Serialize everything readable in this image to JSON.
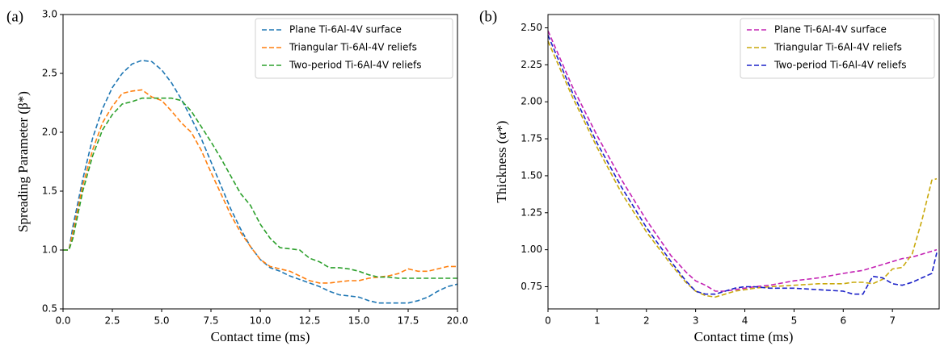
{
  "chart_data": [
    {
      "type": "line",
      "panel": "(a)",
      "x_label": "Contact time (ms)",
      "y_label": "Spreading Parameter (β*)",
      "xlim": [
        0,
        20
      ],
      "ylim": [
        0.5,
        3.0
      ],
      "xticks": [
        {
          "value": 0,
          "label": "0.0"
        },
        2.5,
        {
          "value": 5,
          "label": "5.0"
        },
        7.5,
        {
          "value": 10,
          "label": "10.0"
        },
        12.5,
        {
          "value": 15,
          "label": "15.0"
        },
        17.5,
        {
          "value": 20,
          "label": "20.0"
        }
      ],
      "yticks": [
        0.5,
        {
          "value": 1,
          "label": "1.0"
        },
        1.5,
        {
          "value": 2,
          "label": "2.0"
        },
        2.5,
        {
          "value": 3,
          "label": "3.0"
        }
      ],
      "legend": "upper right",
      "line_style": "dashed",
      "x": [
        0,
        0.3,
        0.5,
        1,
        1.5,
        2,
        2.5,
        3,
        3.5,
        4,
        4.5,
        5,
        5.5,
        6,
        6.5,
        7,
        7.5,
        8,
        8.5,
        9,
        9.5,
        10,
        10.5,
        11,
        11.5,
        12,
        12.5,
        13,
        13.5,
        14,
        14.5,
        15,
        15.5,
        16,
        16.5,
        17,
        17.5,
        18,
        18.5,
        19,
        19.5,
        20
      ],
      "series": [
        {
          "name": "Plane Ti-6Al-4V surface",
          "color": "#1f77b4",
          "values": [
            1.0,
            1.0,
            1.2,
            1.6,
            1.95,
            2.2,
            2.38,
            2.5,
            2.58,
            2.61,
            2.6,
            2.53,
            2.42,
            2.28,
            2.12,
            1.95,
            1.75,
            1.55,
            1.35,
            1.18,
            1.03,
            0.92,
            0.85,
            0.82,
            0.78,
            0.75,
            0.72,
            0.69,
            0.65,
            0.62,
            0.61,
            0.6,
            0.57,
            0.55,
            0.55,
            0.55,
            0.55,
            0.57,
            0.6,
            0.65,
            0.69,
            0.71
          ]
        },
        {
          "name": "Triangular Ti-6Al-4V reliefs",
          "color": "#ff7f0e",
          "values": [
            1.0,
            1.0,
            1.15,
            1.55,
            1.85,
            2.08,
            2.22,
            2.33,
            2.35,
            2.36,
            2.3,
            2.27,
            2.18,
            2.08,
            2.0,
            1.85,
            1.66,
            1.48,
            1.3,
            1.15,
            1.03,
            0.92,
            0.86,
            0.84,
            0.82,
            0.78,
            0.74,
            0.72,
            0.72,
            0.73,
            0.74,
            0.74,
            0.76,
            0.77,
            0.78,
            0.8,
            0.84,
            0.82,
            0.82,
            0.84,
            0.86,
            0.86
          ]
        },
        {
          "name": "Two-period Ti-6Al-4V reliefs",
          "color": "#2ca02c",
          "values": [
            1.0,
            1.0,
            1.1,
            1.5,
            1.8,
            2.02,
            2.15,
            2.24,
            2.26,
            2.29,
            2.29,
            2.29,
            2.29,
            2.27,
            2.18,
            2.05,
            1.92,
            1.78,
            1.63,
            1.48,
            1.38,
            1.22,
            1.1,
            1.02,
            1.01,
            1.0,
            0.93,
            0.9,
            0.85,
            0.85,
            0.84,
            0.82,
            0.79,
            0.77,
            0.77,
            0.76,
            0.76,
            0.76,
            0.76,
            0.76,
            0.76,
            0.76
          ]
        }
      ]
    },
    {
      "type": "line",
      "panel": "(b)",
      "x_label": "Contact time (ms)",
      "y_label": "Thickness (α*)",
      "xlim": [
        0,
        7.95
      ],
      "ylim": [
        0.6,
        2.59
      ],
      "xticks": [
        0,
        1,
        2,
        3,
        4,
        5,
        6,
        7
      ],
      "yticks": [
        0.75,
        {
          "value": 1,
          "label": "1.00"
        },
        1.25,
        {
          "value": 1.5,
          "label": "1.50"
        },
        1.75,
        {
          "value": 2,
          "label": "2.00"
        },
        2.25,
        {
          "value": 2.5,
          "label": "2.50"
        }
      ],
      "legend": "upper right",
      "line_style": "dashed",
      "x": [
        0,
        0.5,
        1,
        1.5,
        2,
        2.5,
        2.8,
        3,
        3.2,
        3.4,
        3.6,
        3.8,
        4,
        4.2,
        4.5,
        5,
        5.5,
        6,
        6.2,
        6.4,
        6.6,
        6.8,
        7,
        7.2,
        7.4,
        7.6,
        7.8,
        7.9
      ],
      "series": [
        {
          "name": "Plane Ti-6Al-4V surface",
          "color": "#c423b4",
          "values": [
            2.48,
            2.1,
            1.77,
            1.47,
            1.2,
            0.96,
            0.85,
            0.79,
            0.76,
            0.72,
            0.72,
            0.73,
            0.74,
            0.75,
            0.76,
            0.79,
            0.81,
            0.84,
            0.85,
            0.86,
            0.88,
            0.9,
            0.92,
            0.94,
            0.95,
            0.97,
            0.99,
            1.0
          ]
        },
        {
          "name": "Triangular Ti-6Al-4V reliefs",
          "color": "#c9a90c",
          "values": [
            2.41,
            2.03,
            1.69,
            1.38,
            1.12,
            0.9,
            0.78,
            0.72,
            0.69,
            0.68,
            0.7,
            0.72,
            0.73,
            0.74,
            0.75,
            0.76,
            0.77,
            0.77,
            0.78,
            0.78,
            0.77,
            0.8,
            0.87,
            0.88,
            0.97,
            1.2,
            1.47,
            1.48
          ]
        },
        {
          "name": "Two-period Ti-6Al-4V reliefs",
          "color": "#1c22c8",
          "values": [
            2.45,
            2.06,
            1.72,
            1.42,
            1.15,
            0.92,
            0.79,
            0.72,
            0.7,
            0.7,
            0.72,
            0.74,
            0.75,
            0.75,
            0.74,
            0.74,
            0.73,
            0.72,
            0.7,
            0.7,
            0.82,
            0.81,
            0.77,
            0.76,
            0.78,
            0.81,
            0.84,
            0.98
          ]
        }
      ]
    }
  ]
}
